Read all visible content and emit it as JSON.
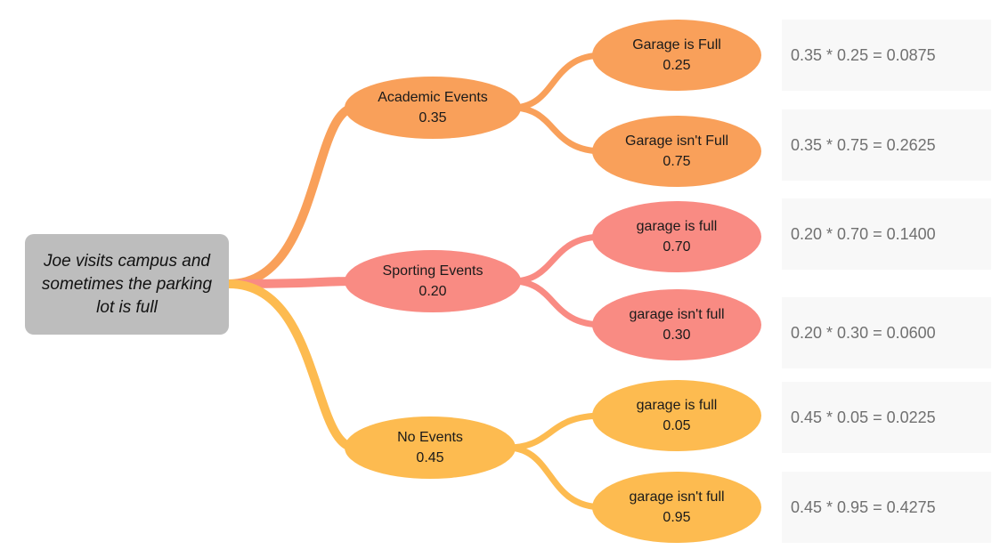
{
  "root": {
    "label": "Joe visits campus and sometimes the parking lot is full",
    "color": "#bdbdbd"
  },
  "branches": [
    {
      "label": "Academic Events",
      "prob": "0.35",
      "color": "#f9a05a",
      "children": [
        {
          "label": "Garage is Full",
          "prob": "0.25",
          "calc": "0.35 * 0.25 = 0.0875"
        },
        {
          "label": "Garage isn't Full",
          "prob": "0.75",
          "calc": "0.35 * 0.75 = 0.2625"
        }
      ]
    },
    {
      "label": "Sporting Events",
      "prob": "0.20",
      "color": "#f98b83",
      "children": [
        {
          "label": "garage is full",
          "prob": "0.70",
          "calc": "0.20 * 0.70 = 0.1400"
        },
        {
          "label": "garage isn't full",
          "prob": "0.30",
          "calc": "0.20 * 0.30 = 0.0600"
        }
      ]
    },
    {
      "label": "No Events",
      "prob": "0.45",
      "color": "#fdbb50",
      "children": [
        {
          "label": "garage is full",
          "prob": "0.05",
          "calc": "0.45 * 0.05 = 0.0225"
        },
        {
          "label": "garage isn't full",
          "prob": "0.95",
          "calc": "0.45 * 0.95 = 0.4275"
        }
      ]
    }
  ]
}
